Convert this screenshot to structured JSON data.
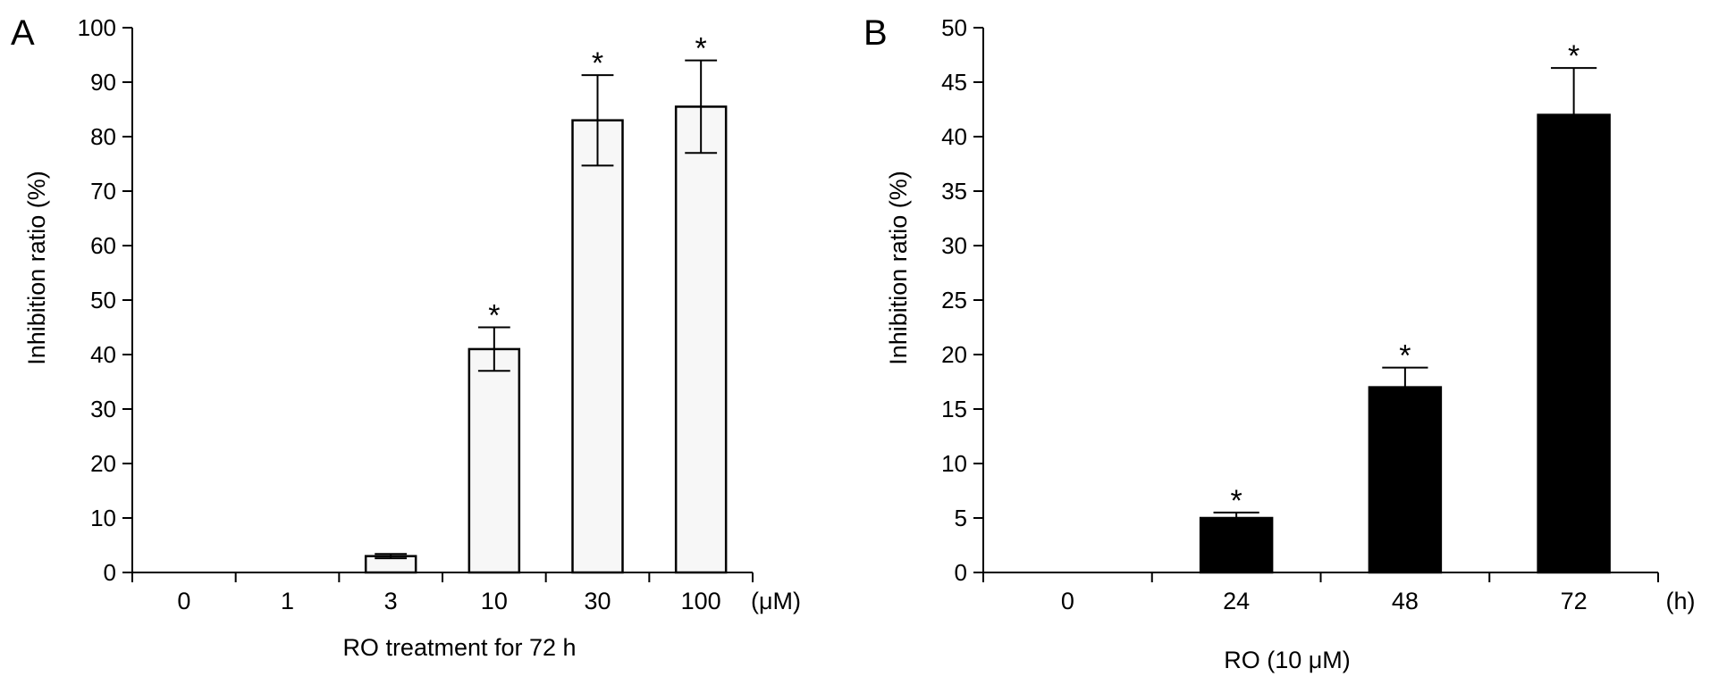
{
  "chart_data": [
    {
      "panel_label": "A",
      "type": "bar",
      "categories": [
        "0",
        "1",
        "3",
        "10",
        "30",
        "100"
      ],
      "unit_label": "(μM)",
      "values": [
        0,
        0,
        3,
        41,
        83,
        85.5
      ],
      "errors": [
        0,
        0,
        0.4,
        4,
        8.3,
        8.5
      ],
      "significant": [
        false,
        false,
        false,
        true,
        true,
        true
      ],
      "significance_marker": "*",
      "xlabel": "RO treatment for 72 h",
      "ylabel": "Inhibition ratio (%)",
      "ylim": [
        0,
        100
      ],
      "yticks": [
        "0",
        "10",
        "20",
        "30",
        "40",
        "50",
        "60",
        "70",
        "80",
        "90",
        "100"
      ],
      "bar_color": "#f7f7f7",
      "grid": false
    },
    {
      "panel_label": "B",
      "type": "bar",
      "categories": [
        "0",
        "24",
        "48",
        "72"
      ],
      "unit_label": "(h)",
      "values": [
        0,
        5,
        17,
        42
      ],
      "errors": [
        0,
        0.5,
        1.8,
        4.3
      ],
      "significant": [
        false,
        true,
        true,
        true
      ],
      "significance_marker": "*",
      "xlabel": "RO (10 μM)",
      "ylabel": "Inhibition ratio (%)",
      "ylim": [
        0,
        50
      ],
      "yticks": [
        "0",
        "5",
        "10",
        "15",
        "20",
        "25",
        "30",
        "35",
        "40",
        "45",
        "50"
      ],
      "bar_color": "#000000",
      "grid": false
    }
  ]
}
